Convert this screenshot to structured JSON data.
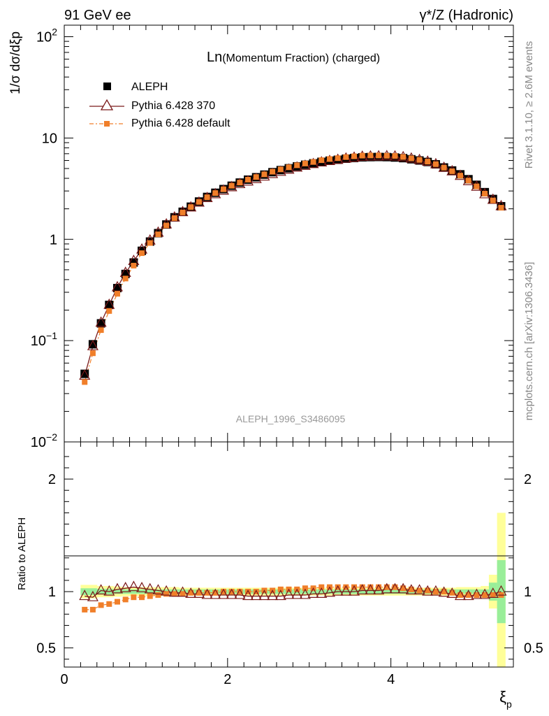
{
  "header": {
    "left": "91 GeV ee",
    "right": "γ*/Z (Hadronic)"
  },
  "side": {
    "rivet": "Rivet 3.1.10, ≥ 2.6M events",
    "mcplots": "mcplots.cern.ch [arXiv:1306.3436]"
  },
  "chart_data": [
    {
      "type": "scatter",
      "title": "Ln(Momentum Fraction) (charged)",
      "title_main": "Ln",
      "title_rest": "(Momentum Fraction) (charged)",
      "ylabel": "1/σ dσ/dξp",
      "analysis_label": "ALEPH_1996_S3486095",
      "yscale": "log",
      "xlim": [
        0,
        5.5
      ],
      "ylim": [
        0.01,
        130
      ],
      "yticks": [
        {
          "value": 0.01,
          "base": "10",
          "exp": "−2"
        },
        {
          "value": 0.1,
          "base": "10",
          "exp": "−1"
        },
        {
          "value": 1,
          "base": "1",
          "exp": ""
        },
        {
          "value": 10,
          "base": "10",
          "exp": ""
        },
        {
          "value": 100,
          "base": "10",
          "exp": "2"
        }
      ],
      "legend_position": "top-left",
      "x": [
        0.25,
        0.35,
        0.45,
        0.55,
        0.65,
        0.75,
        0.85,
        0.95,
        1.05,
        1.15,
        1.25,
        1.35,
        1.45,
        1.55,
        1.65,
        1.75,
        1.85,
        1.95,
        2.05,
        2.15,
        2.25,
        2.35,
        2.45,
        2.55,
        2.65,
        2.75,
        2.85,
        2.95,
        3.05,
        3.15,
        3.25,
        3.35,
        3.45,
        3.55,
        3.65,
        3.75,
        3.85,
        3.95,
        4.05,
        4.15,
        4.25,
        4.35,
        4.45,
        4.55,
        4.65,
        4.75,
        4.85,
        4.95,
        5.05,
        5.15,
        5.25,
        5.35
      ],
      "series": [
        {
          "name": "ALEPH",
          "marker": "square",
          "color": "#000000",
          "values": [
            0.047,
            0.092,
            0.148,
            0.225,
            0.33,
            0.455,
            0.59,
            0.77,
            0.95,
            1.15,
            1.4,
            1.65,
            1.87,
            2.1,
            2.36,
            2.62,
            2.88,
            3.13,
            3.38,
            3.63,
            3.88,
            4.1,
            4.35,
            4.6,
            4.82,
            5.03,
            5.25,
            5.45,
            5.63,
            5.82,
            5.98,
            6.1,
            6.25,
            6.35,
            6.45,
            6.48,
            6.5,
            6.48,
            6.42,
            6.33,
            6.17,
            6.0,
            5.8,
            5.5,
            5.12,
            4.78,
            4.38,
            3.92,
            3.45,
            2.92,
            2.5,
            2.12
          ]
        },
        {
          "name": "Pythia 6.428 370",
          "marker": "open-triangle",
          "color": "#7a1a1a",
          "values": [
            0.045,
            0.088,
            0.15,
            0.225,
            0.335,
            0.465,
            0.61,
            0.79,
            0.97,
            1.16,
            1.4,
            1.64,
            1.85,
            2.06,
            2.3,
            2.55,
            2.78,
            3.02,
            3.26,
            3.5,
            3.72,
            3.93,
            4.16,
            4.4,
            4.63,
            4.86,
            5.1,
            5.3,
            5.52,
            5.73,
            5.92,
            6.07,
            6.25,
            6.38,
            6.52,
            6.56,
            6.58,
            6.6,
            6.56,
            6.45,
            6.25,
            6.05,
            5.82,
            5.5,
            5.07,
            4.68,
            4.22,
            3.75,
            3.3,
            2.78,
            2.45,
            2.12
          ]
        },
        {
          "name": "Pythia 6.428 default",
          "marker": "filled-square-dashed",
          "color": "#f07f2a",
          "values": [
            0.039,
            0.075,
            0.127,
            0.196,
            0.29,
            0.41,
            0.55,
            0.73,
            0.92,
            1.12,
            1.37,
            1.62,
            1.84,
            2.08,
            2.34,
            2.6,
            2.86,
            3.12,
            3.38,
            3.63,
            3.88,
            4.12,
            4.38,
            4.65,
            4.9,
            5.14,
            5.38,
            5.6,
            5.8,
            6.04,
            6.2,
            6.32,
            6.48,
            6.6,
            6.7,
            6.72,
            6.72,
            6.68,
            6.65,
            6.5,
            6.3,
            6.08,
            5.85,
            5.52,
            5.1,
            4.7,
            4.25,
            3.8,
            3.33,
            2.82,
            2.42,
            2.05
          ]
        }
      ]
    },
    {
      "type": "scatter",
      "ylabel": "Ratio to ALEPH",
      "xlabel": "ξp",
      "xlim": [
        0,
        5.5
      ],
      "ylim": [
        0.33,
        2.33
      ],
      "xticks": [
        0,
        2,
        4
      ],
      "yticks": [
        0.5,
        1,
        2
      ],
      "band_green_half_width": [
        0.03,
        0.03,
        0.025,
        0.025,
        0.02,
        0.02,
        0.02,
        0.02,
        0.02,
        0.02,
        0.02,
        0.02,
        0.02,
        0.02,
        0.02,
        0.02,
        0.02,
        0.02,
        0.02,
        0.02,
        0.02,
        0.02,
        0.02,
        0.02,
        0.02,
        0.02,
        0.02,
        0.02,
        0.02,
        0.02,
        0.02,
        0.02,
        0.02,
        0.02,
        0.02,
        0.02,
        0.02,
        0.02,
        0.02,
        0.02,
        0.02,
        0.02,
        0.02,
        0.02,
        0.02,
        0.02,
        0.02,
        0.02,
        0.02,
        0.02,
        0.08,
        0.28
      ],
      "band_yellow_half_width": [
        0.06,
        0.06,
        0.05,
        0.05,
        0.045,
        0.04,
        0.04,
        0.04,
        0.04,
        0.04,
        0.04,
        0.04,
        0.035,
        0.035,
        0.035,
        0.035,
        0.035,
        0.035,
        0.035,
        0.035,
        0.035,
        0.035,
        0.035,
        0.035,
        0.035,
        0.035,
        0.035,
        0.035,
        0.035,
        0.035,
        0.035,
        0.035,
        0.035,
        0.035,
        0.035,
        0.035,
        0.035,
        0.035,
        0.035,
        0.035,
        0.035,
        0.035,
        0.035,
        0.035,
        0.035,
        0.035,
        0.04,
        0.04,
        0.04,
        0.05,
        0.15,
        0.7
      ],
      "series": [
        {
          "name": "Pythia 6.428 370",
          "color": "#7a1a1a",
          "values": [
            0.96,
            0.95,
            1.01,
            1.0,
            1.02,
            1.03,
            1.04,
            1.03,
            1.02,
            1.01,
            1.0,
            0.99,
            0.99,
            0.98,
            0.98,
            0.97,
            0.97,
            0.97,
            0.97,
            0.97,
            0.96,
            0.96,
            0.96,
            0.96,
            0.96,
            0.97,
            0.97,
            0.97,
            0.98,
            0.98,
            0.99,
            1.0,
            1.0,
            1.0,
            1.01,
            1.01,
            1.01,
            1.02,
            1.02,
            1.02,
            1.01,
            1.01,
            1.0,
            1.0,
            0.99,
            0.98,
            0.96,
            0.96,
            0.97,
            0.97,
            0.98,
            1.0
          ]
        },
        {
          "name": "Pythia 6.428 default",
          "color": "#f07f2a",
          "values": [
            0.84,
            0.84,
            0.88,
            0.89,
            0.91,
            0.93,
            0.95,
            0.95,
            0.96,
            0.97,
            0.98,
            0.98,
            0.98,
            0.99,
            0.99,
            0.99,
            0.99,
            1.0,
            1.0,
            1.0,
            1.0,
            1.0,
            1.01,
            1.01,
            1.02,
            1.02,
            1.02,
            1.03,
            1.03,
            1.04,
            1.04,
            1.04,
            1.04,
            1.04,
            1.04,
            1.04,
            1.04,
            1.04,
            1.04,
            1.03,
            1.02,
            1.01,
            1.01,
            1.0,
            1.0,
            0.99,
            0.97,
            0.97,
            0.97,
            0.97,
            0.97,
            0.97
          ]
        }
      ]
    }
  ]
}
